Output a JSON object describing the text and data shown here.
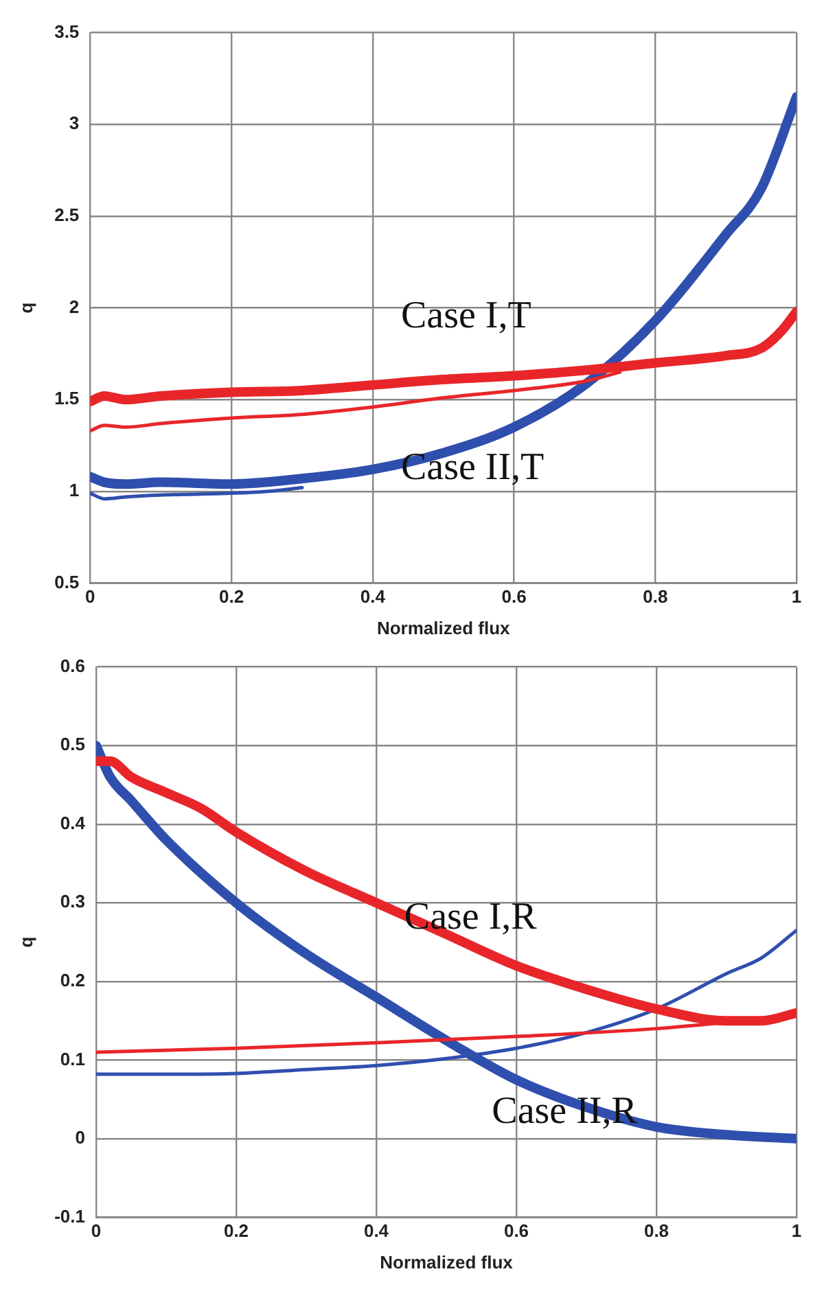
{
  "chart_data": [
    {
      "type": "line",
      "xlabel": "Normalized flux",
      "ylabel": "q",
      "xlim": [
        0,
        1
      ],
      "xticks": [
        0,
        0.2,
        0.4,
        0.6,
        0.8,
        1
      ],
      "ylim": [
        0.5,
        3.5
      ],
      "yticks": [
        0.5,
        1,
        1.5,
        2,
        2.5,
        3,
        3.5
      ],
      "grid": true,
      "marker": "none",
      "line_style": "solid",
      "annotations": [
        "Case I,T",
        "Case II,T"
      ],
      "series": [
        {
          "color": "#e8262a",
          "x": [
            0,
            0.02,
            0.05,
            0.1,
            0.2,
            0.3,
            0.4,
            0.5,
            0.6,
            0.7,
            0.8,
            0.9,
            0.95,
            0.98,
            1
          ],
          "values": [
            1.49,
            1.52,
            1.5,
            1.52,
            1.54,
            1.55,
            1.58,
            1.61,
            1.63,
            1.66,
            1.7,
            1.74,
            1.78,
            1.88,
            1.98
          ]
        },
        {
          "color": "#e8262a",
          "x": [
            0,
            0.02,
            0.05,
            0.1,
            0.2,
            0.3,
            0.4,
            0.5,
            0.6,
            0.7,
            0.75
          ],
          "values": [
            1.33,
            1.36,
            1.35,
            1.37,
            1.4,
            1.42,
            1.46,
            1.51,
            1.55,
            1.6,
            1.65
          ]
        },
        {
          "color": "#2f4fae",
          "x": [
            0,
            0.02,
            0.05,
            0.1,
            0.2,
            0.3,
            0.4,
            0.5,
            0.6,
            0.7,
            0.8,
            0.9,
            0.95,
            1
          ],
          "values": [
            1.08,
            1.05,
            1.04,
            1.05,
            1.04,
            1.07,
            1.12,
            1.21,
            1.35,
            1.58,
            1.93,
            2.4,
            2.65,
            3.15
          ]
        },
        {
          "color": "#2f4fae",
          "x": [
            0,
            0.02,
            0.05,
            0.1,
            0.2,
            0.25,
            0.3
          ],
          "values": [
            0.99,
            0.96,
            0.97,
            0.98,
            0.99,
            1.0,
            1.02
          ]
        }
      ]
    },
    {
      "type": "line",
      "xlabel": "Normalized flux",
      "ylabel": "q",
      "xlim": [
        0,
        1
      ],
      "xticks": [
        0,
        0.2,
        0.4,
        0.6,
        0.8,
        1
      ],
      "ylim": [
        -0.1,
        0.6
      ],
      "yticks": [
        -0.1,
        0,
        0.1,
        0.2,
        0.3,
        0.4,
        0.5,
        0.6
      ],
      "grid": true,
      "marker": "none",
      "line_style": "solid",
      "annotations": [
        "Case I,R",
        "Case II,R"
      ],
      "series": [
        {
          "color": "#e8262a",
          "x": [
            0,
            0.02,
            0.05,
            0.1,
            0.15,
            0.2,
            0.3,
            0.4,
            0.5,
            0.6,
            0.7,
            0.8,
            0.9,
            0.95,
            1
          ],
          "values": [
            0.48,
            0.48,
            0.46,
            0.44,
            0.42,
            0.39,
            0.34,
            0.3,
            0.26,
            0.22,
            0.19,
            0.165,
            0.15,
            0.15,
            0.16
          ]
        },
        {
          "color": "#e8262a",
          "x": [
            0,
            0.2,
            0.4,
            0.6,
            0.8,
            0.9
          ],
          "values": [
            0.11,
            0.115,
            0.122,
            0.13,
            0.14,
            0.148
          ]
        },
        {
          "color": "#2f4fae",
          "x": [
            0,
            0.02,
            0.05,
            0.1,
            0.2,
            0.3,
            0.4,
            0.5,
            0.6,
            0.7,
            0.8,
            0.9,
            1
          ],
          "values": [
            0.5,
            0.46,
            0.43,
            0.38,
            0.3,
            0.235,
            0.18,
            0.125,
            0.075,
            0.04,
            0.015,
            0.005,
            0
          ]
        },
        {
          "color": "#2f4fae",
          "x": [
            0,
            0.1,
            0.2,
            0.3,
            0.4,
            0.5,
            0.6,
            0.7,
            0.8,
            0.9,
            0.95,
            1
          ],
          "values": [
            0.082,
            0.082,
            0.083,
            0.088,
            0.093,
            0.102,
            0.115,
            0.135,
            0.165,
            0.21,
            0.23,
            0.265
          ]
        }
      ]
    }
  ]
}
